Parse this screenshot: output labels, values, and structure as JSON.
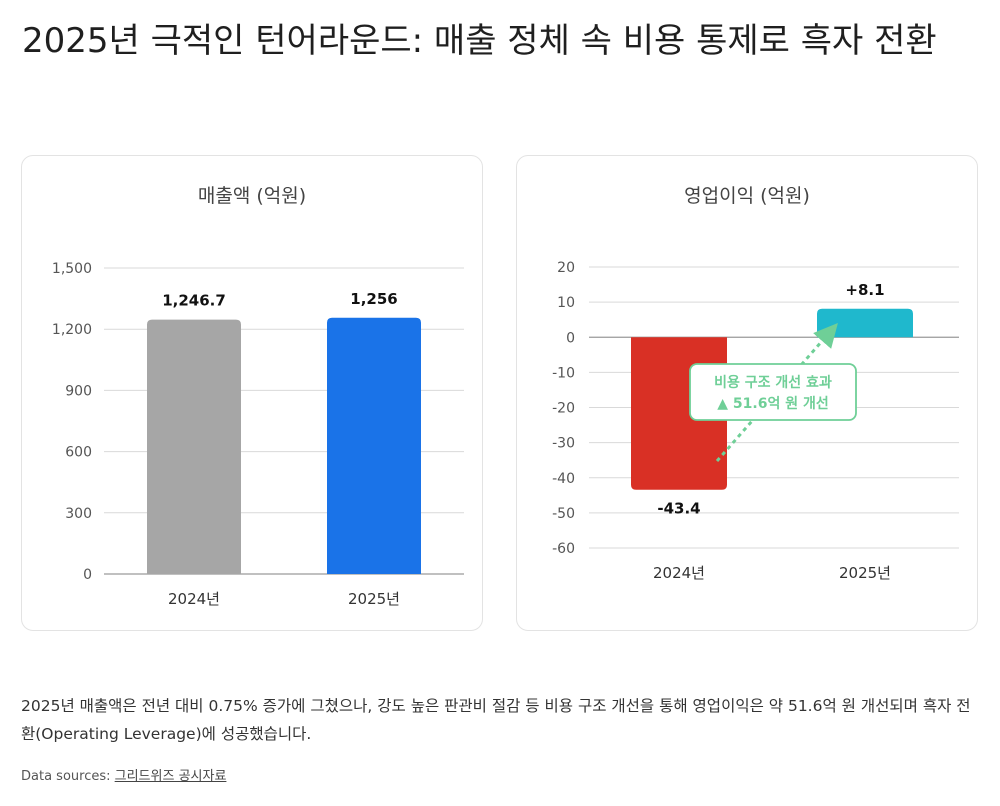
{
  "title": "2025년 극적인 턴어라운드: 매출 정체 속 비용 통제로 흑자 전환",
  "description": "2025년 매출액은 전년 대비 0.75% 증가에 그쳤으나, 강도 높은 판관비 절감 등 비용 구조 개선을 통해 영업이익은 약 51.6억 원 개선되며 흑자 전환(Operating Leverage)에 성공했습니다.",
  "sources": {
    "label": "Data sources:",
    "link_text": "그리드위즈 공시자료"
  },
  "chart_data": [
    {
      "type": "bar",
      "title": "매출액 (억원)",
      "categories": [
        "2024년",
        "2025년"
      ],
      "values": [
        1246.7,
        1256
      ],
      "value_labels": [
        "1,246.7",
        "1,256"
      ],
      "ylim": [
        0,
        1500
      ],
      "yticks": [
        0,
        300,
        600,
        900,
        1200,
        1500
      ],
      "ytick_labels": [
        "0",
        "300",
        "600",
        "900",
        "1,200",
        "1,500"
      ],
      "colors": [
        "#a6a6a6",
        "#1a73e8"
      ],
      "grid": true
    },
    {
      "type": "bar",
      "title": "영업이익 (억원)",
      "categories": [
        "2024년",
        "2025년"
      ],
      "values": [
        -43.4,
        8.1
      ],
      "value_labels": [
        "-43.4",
        "+8.1"
      ],
      "ylim": [
        -60,
        20
      ],
      "yticks": [
        20,
        10,
        0,
        -10,
        -20,
        -30,
        -40,
        -50,
        -60
      ],
      "ytick_labels": [
        "20",
        "10",
        "0",
        "-10",
        "-20",
        "-30",
        "-40",
        "-50",
        "-60"
      ],
      "colors": [
        "#d93025",
        "#1fb8cd"
      ],
      "grid": true,
      "annotation": {
        "line1": "비용 구조 개선 효과",
        "line2": "▲ 51.6억 원 개선",
        "color": "#6fcf97"
      }
    }
  ]
}
